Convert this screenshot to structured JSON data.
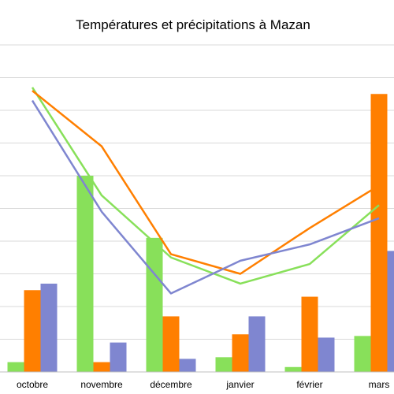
{
  "chart_data": {
    "type": "bar",
    "title": "Températures et précipitations à Mazan",
    "xlabel": "",
    "ylabel": "",
    "categories": [
      "octobre",
      "novembre",
      "décembre",
      "janvier",
      "février",
      "mars"
    ],
    "ylim": [
      0,
      100
    ],
    "grid": true,
    "bar_series": [
      {
        "values": [
          3,
          60,
          41,
          4.5,
          1.5,
          11
        ],
        "color": "#88e05a"
      },
      {
        "values": [
          25,
          3,
          17,
          11.5,
          23,
          85
        ],
        "color": "#ff7f00"
      },
      {
        "values": [
          27,
          9,
          4,
          17,
          10.5,
          37
        ],
        "color": "#7f86d0"
      }
    ],
    "line_series": [
      {
        "values": [
          87,
          54,
          35,
          27,
          33,
          51
        ],
        "color": "#88e05a"
      },
      {
        "values": [
          86,
          69,
          36,
          30,
          44,
          57
        ],
        "color": "#ff7f00"
      },
      {
        "values": [
          83,
          49,
          24,
          34,
          39,
          47
        ],
        "color": "#7f86d0"
      }
    ]
  }
}
